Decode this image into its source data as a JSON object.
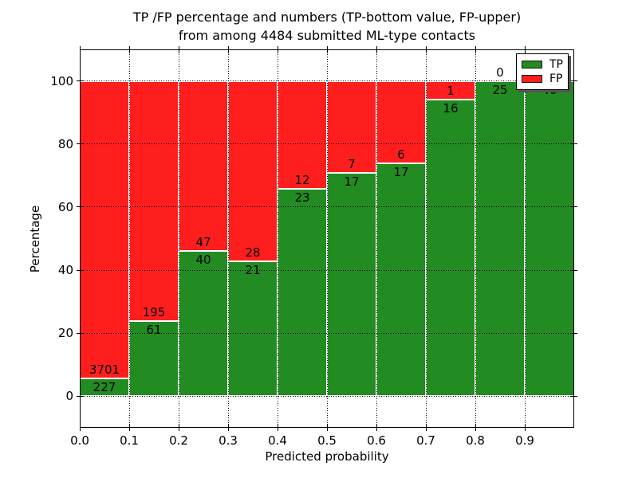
{
  "chart_data": {
    "type": "bar",
    "subtype": "stacked-percentage-histogram",
    "title_line1": "TP /FP percentage and numbers (TP-bottom value, FP-upper)",
    "title_line2": "from among 4484 submitted ML-type contacts",
    "xlabel": "Predicted probability",
    "ylabel": "Percentage",
    "xlim": [
      0.0,
      1.0
    ],
    "ylim": [
      -10,
      110
    ],
    "bin_width": 0.1,
    "bin_starts": [
      0.0,
      0.1,
      0.2,
      0.3,
      0.4,
      0.5,
      0.6,
      0.7,
      0.8,
      0.9
    ],
    "x_ticks": [
      0.0,
      0.1,
      0.2,
      0.3,
      0.4,
      0.5,
      0.6,
      0.7,
      0.8,
      0.9
    ],
    "x_tick_labels": [
      "0.0",
      "0.1",
      "0.2",
      "0.3",
      "0.4",
      "0.5",
      "0.6",
      "0.7",
      "0.8",
      "0.9"
    ],
    "y_ticks": [
      0,
      20,
      40,
      60,
      80,
      100
    ],
    "y_tick_labels": [
      "0",
      "20",
      "40",
      "60",
      "80",
      "100"
    ],
    "grid": "dotted",
    "series": [
      {
        "name": "TP",
        "color": "#228B22",
        "stack_position": "bottom",
        "counts": [
          227,
          61,
          40,
          21,
          23,
          17,
          17,
          16,
          25,
          40
        ]
      },
      {
        "name": "FP",
        "color": "#FF1E1E",
        "stack_position": "top",
        "counts": [
          3701,
          195,
          47,
          28,
          12,
          7,
          6,
          1,
          0,
          0
        ]
      }
    ],
    "tp_percent": [
      5.78,
      23.83,
      45.98,
      42.86,
      65.71,
      70.83,
      73.91,
      94.12,
      100.0,
      100.0
    ],
    "total_contacts": 4484,
    "legend": {
      "position": "upper-right",
      "entries": [
        {
          "label": "TP",
          "color": "#228B22"
        },
        {
          "label": "FP",
          "color": "#FF1E1E"
        }
      ]
    }
  }
}
